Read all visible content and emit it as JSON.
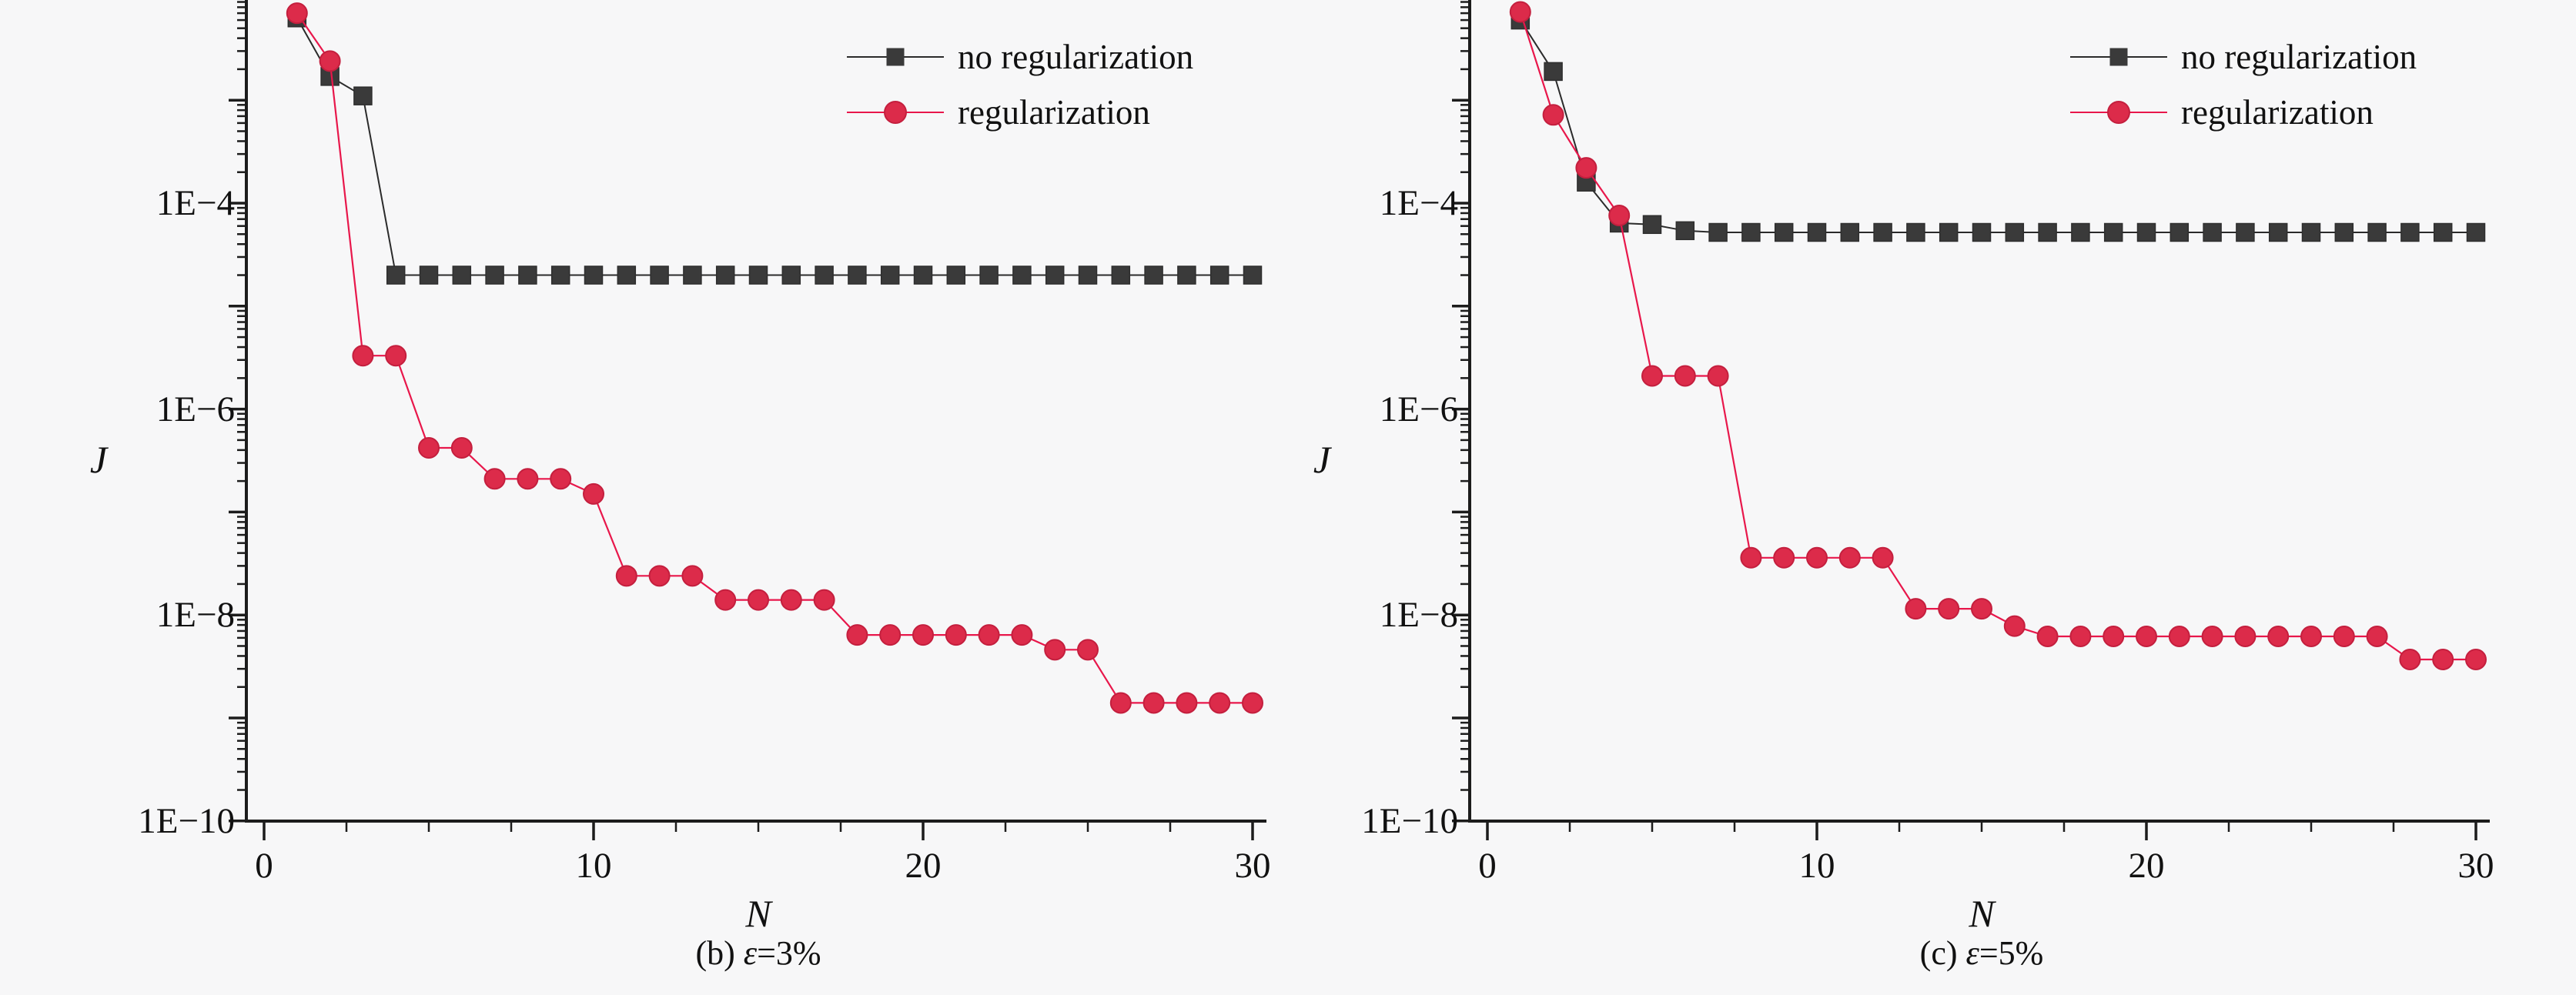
{
  "figure": {
    "background": "#f7f7f8",
    "description": "Two log-scale convergence plots of objective J versus iteration N, comparing no regularization (dark squares) and regularization (red circles)",
    "colors": {
      "no_regularization_marker": "#3a3a3a",
      "no_regularization_line": "#2b2b2b",
      "regularization_marker": "#dc2b4a",
      "regularization_line": "#e8174b",
      "axis": "#1c1c1c",
      "text": "#111111"
    }
  },
  "chart_data": [
    {
      "type": "line",
      "id": "b",
      "caption_prefix": "(b) ",
      "caption_epsilon": "ε",
      "caption_suffix": "=3%",
      "xlabel": "N",
      "ylabel": "J",
      "x_tick_labels": [
        "0",
        "10",
        "20",
        "30"
      ],
      "x_tick_values": [
        0,
        10,
        20,
        30
      ],
      "x_minor_step": 2.5,
      "xlim": [
        -0.54,
        30.45
      ],
      "ylim": [
        1e-10,
        0.0093
      ],
      "y_scale": "log",
      "y_tick_labels": [
        {
          "text": "1E−4",
          "value": 0.0001
        },
        {
          "text": "1E−6",
          "value": 1e-06
        },
        {
          "text": "1E−8",
          "value": 1e-08
        },
        {
          "text": "1E−10",
          "value": 1e-10
        }
      ],
      "legend_position": "top-right-inside",
      "grid": false,
      "x": [
        1,
        2,
        3,
        4,
        5,
        6,
        7,
        8,
        9,
        10,
        11,
        12,
        13,
        14,
        15,
        16,
        17,
        18,
        19,
        20,
        21,
        22,
        23,
        24,
        25,
        26,
        27,
        28,
        29,
        30
      ],
      "series": [
        {
          "name": "no regularization",
          "marker": "square",
          "values": [
            0.0063,
            0.0017,
            0.0011,
            2e-05,
            2e-05,
            2e-05,
            2e-05,
            2e-05,
            2e-05,
            2e-05,
            2e-05,
            2e-05,
            2e-05,
            2e-05,
            2e-05,
            2e-05,
            2e-05,
            2e-05,
            2e-05,
            2e-05,
            2e-05,
            2e-05,
            2e-05,
            2e-05,
            2e-05,
            2e-05,
            2e-05,
            2e-05,
            2e-05,
            2e-05
          ]
        },
        {
          "name": "regularization",
          "marker": "circle",
          "values": [
            0.007,
            0.0024,
            3.3e-06,
            3.3e-06,
            4.2e-07,
            4.2e-07,
            2.1e-07,
            2.1e-07,
            2.1e-07,
            1.5e-07,
            2.4e-08,
            2.4e-08,
            2.4e-08,
            1.4e-08,
            1.4e-08,
            1.4e-08,
            1.4e-08,
            6.4e-09,
            6.4e-09,
            6.4e-09,
            6.4e-09,
            6.4e-09,
            6.4e-09,
            4.6e-09,
            4.6e-09,
            1.4e-09,
            1.4e-09,
            1.4e-09,
            1.4e-09,
            1.4e-09
          ]
        }
      ],
      "legend": [
        {
          "label": "no regularization"
        },
        {
          "label": "regularization"
        }
      ]
    },
    {
      "type": "line",
      "id": "c",
      "caption_prefix": "(c) ",
      "caption_epsilon": "ε",
      "caption_suffix": "=5%",
      "xlabel": "N",
      "ylabel": "J",
      "x_tick_labels": [
        "0",
        "10",
        "20",
        "30"
      ],
      "x_tick_values": [
        0,
        10,
        20,
        30
      ],
      "x_minor_step": 2.5,
      "xlim": [
        -0.54,
        30.45
      ],
      "ylim": [
        1e-10,
        0.0093
      ],
      "y_scale": "log",
      "y_tick_labels": [
        {
          "text": "1E−4",
          "value": 0.0001
        },
        {
          "text": "1E−6",
          "value": 1e-06
        },
        {
          "text": "1E−8",
          "value": 1e-08
        },
        {
          "text": "1E−10",
          "value": 1e-10
        }
      ],
      "legend_position": "top-right-inside",
      "grid": false,
      "x": [
        1,
        2,
        3,
        4,
        5,
        6,
        7,
        8,
        9,
        10,
        11,
        12,
        13,
        14,
        15,
        16,
        17,
        18,
        19,
        20,
        21,
        22,
        23,
        24,
        25,
        26,
        27,
        28,
        29,
        30
      ],
      "series": [
        {
          "name": "no regularization",
          "marker": "square",
          "values": [
            0.006,
            0.0019,
            0.00016,
            6.4e-05,
            6.2e-05,
            5.4e-05,
            5.2e-05,
            5.2e-05,
            5.2e-05,
            5.2e-05,
            5.2e-05,
            5.2e-05,
            5.2e-05,
            5.2e-05,
            5.2e-05,
            5.2e-05,
            5.2e-05,
            5.2e-05,
            5.2e-05,
            5.2e-05,
            5.2e-05,
            5.2e-05,
            5.2e-05,
            5.2e-05,
            5.2e-05,
            5.2e-05,
            5.2e-05,
            5.2e-05,
            5.2e-05,
            5.2e-05
          ]
        },
        {
          "name": "regularization",
          "marker": "circle",
          "values": [
            0.0072,
            0.00072,
            0.00022,
            7.6e-05,
            2.1e-06,
            2.1e-06,
            2.1e-06,
            3.6e-08,
            3.6e-08,
            3.6e-08,
            3.6e-08,
            3.6e-08,
            1.15e-08,
            1.15e-08,
            1.15e-08,
            7.8e-09,
            6.2e-09,
            6.2e-09,
            6.2e-09,
            6.2e-09,
            6.2e-09,
            6.2e-09,
            6.2e-09,
            6.2e-09,
            6.2e-09,
            6.2e-09,
            6.2e-09,
            3.7e-09,
            3.7e-09,
            3.7e-09
          ]
        }
      ],
      "legend": [
        {
          "label": "no regularization"
        },
        {
          "label": "regularization"
        }
      ]
    }
  ]
}
